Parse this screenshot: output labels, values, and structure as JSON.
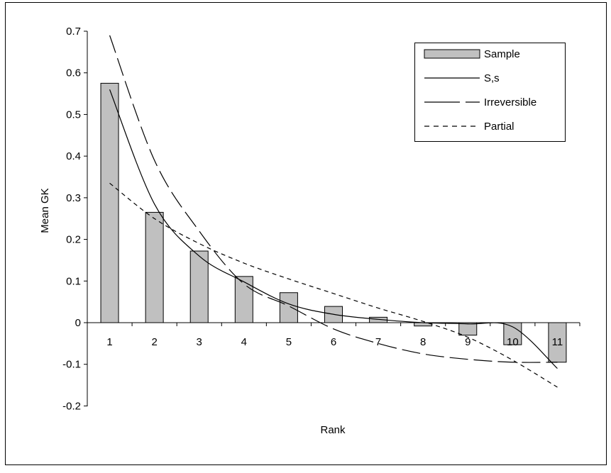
{
  "chart_data": {
    "type": "bar",
    "title": "",
    "xlabel": "Rank",
    "ylabel": "Mean GK",
    "ylim": [
      -0.2,
      0.7
    ],
    "yticks": [
      "0.7",
      "0.6",
      "0.5",
      "0.4",
      "0.3",
      "0.2",
      "0.1",
      "0",
      "-0.1",
      "-0.2"
    ],
    "ytick_values": [
      0.7,
      0.6,
      0.5,
      0.4,
      0.3,
      0.2,
      0.1,
      0,
      -0.1,
      -0.2
    ],
    "categories": [
      "1",
      "2",
      "3",
      "4",
      "5",
      "6",
      "7",
      "8",
      "9",
      "10",
      "11"
    ],
    "grid": false,
    "legend_position": "top-right",
    "series": [
      {
        "name": "Sample",
        "kind": "bar",
        "color": "#c0c0c0",
        "values": [
          0.575,
          0.265,
          0.172,
          0.111,
          0.072,
          0.039,
          0.013,
          -0.008,
          -0.03,
          -0.053,
          -0.095
        ]
      },
      {
        "name": "S,s",
        "kind": "line",
        "style": "solid",
        "color": "#000000",
        "values": [
          0.56,
          0.285,
          0.16,
          0.098,
          0.045,
          0.02,
          0.008,
          0.0,
          -0.003,
          -0.01,
          -0.11
        ]
      },
      {
        "name": "Irreversible",
        "kind": "line",
        "style": "long-dash",
        "color": "#000000",
        "values": [
          0.69,
          0.39,
          0.22,
          0.093,
          0.04,
          -0.015,
          -0.05,
          -0.075,
          -0.088,
          -0.095,
          -0.095
        ]
      },
      {
        "name": "Partial",
        "kind": "line",
        "style": "short-dash",
        "color": "#000000",
        "values": [
          0.335,
          0.25,
          0.19,
          0.143,
          0.105,
          0.07,
          0.035,
          0.003,
          -0.035,
          -0.09,
          -0.155
        ]
      }
    ]
  }
}
